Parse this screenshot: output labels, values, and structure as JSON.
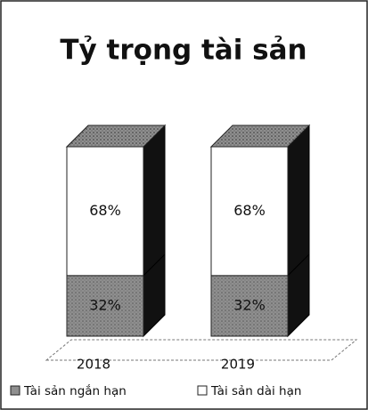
{
  "chart_data": {
    "type": "stacked-bar-3d",
    "title": "Tỷ trọng tài sản",
    "categories": [
      "2018",
      "2019"
    ],
    "series": [
      {
        "name": "Tài sản ngắn hạn",
        "color": "#8f8f8f",
        "values": [
          32,
          32
        ],
        "value_labels": [
          "32%",
          "32%"
        ]
      },
      {
        "name": "Tài sản dài hạn",
        "color": "#ffffff",
        "values": [
          68,
          68
        ],
        "value_labels": [
          "68%",
          "68%"
        ]
      }
    ]
  }
}
